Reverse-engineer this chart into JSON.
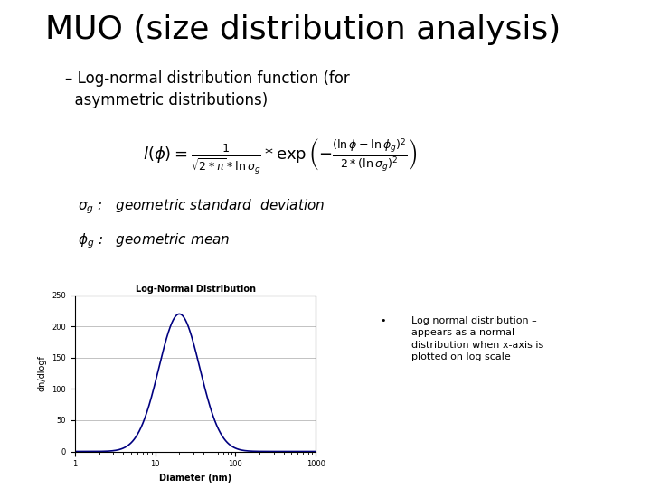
{
  "title": "MUO (size distribution analysis)",
  "subtitle": "– Log-normal distribution function (for\n  asymmetric distributions)",
  "plot_title": "Log-Normal Distribution",
  "xlabel": "Diameter (nm)",
  "ylabel": "dn/dlogf",
  "ylim": [
    0,
    250
  ],
  "geo_mean": 20,
  "geo_std": 1.8,
  "line_color": "#000080",
  "bg_color": "#ffffff",
  "note_bg_color": "#c8d89a",
  "note_bullet": "•",
  "note_text": "Log normal distribution –\nappears as a normal\ndistribution when x-axis is\nplotted on log scale",
  "title_fontsize": 26,
  "subtitle_fontsize": 12,
  "formula_fontsize": 11,
  "label_fontsize": 10,
  "note_fontsize": 8,
  "plot_title_fontsize": 7,
  "plot_label_fontsize": 7,
  "plot_tick_fontsize": 6,
  "yticks": [
    0,
    50,
    100,
    150,
    200,
    250
  ],
  "xticks": [
    1,
    10,
    100,
    1000
  ]
}
